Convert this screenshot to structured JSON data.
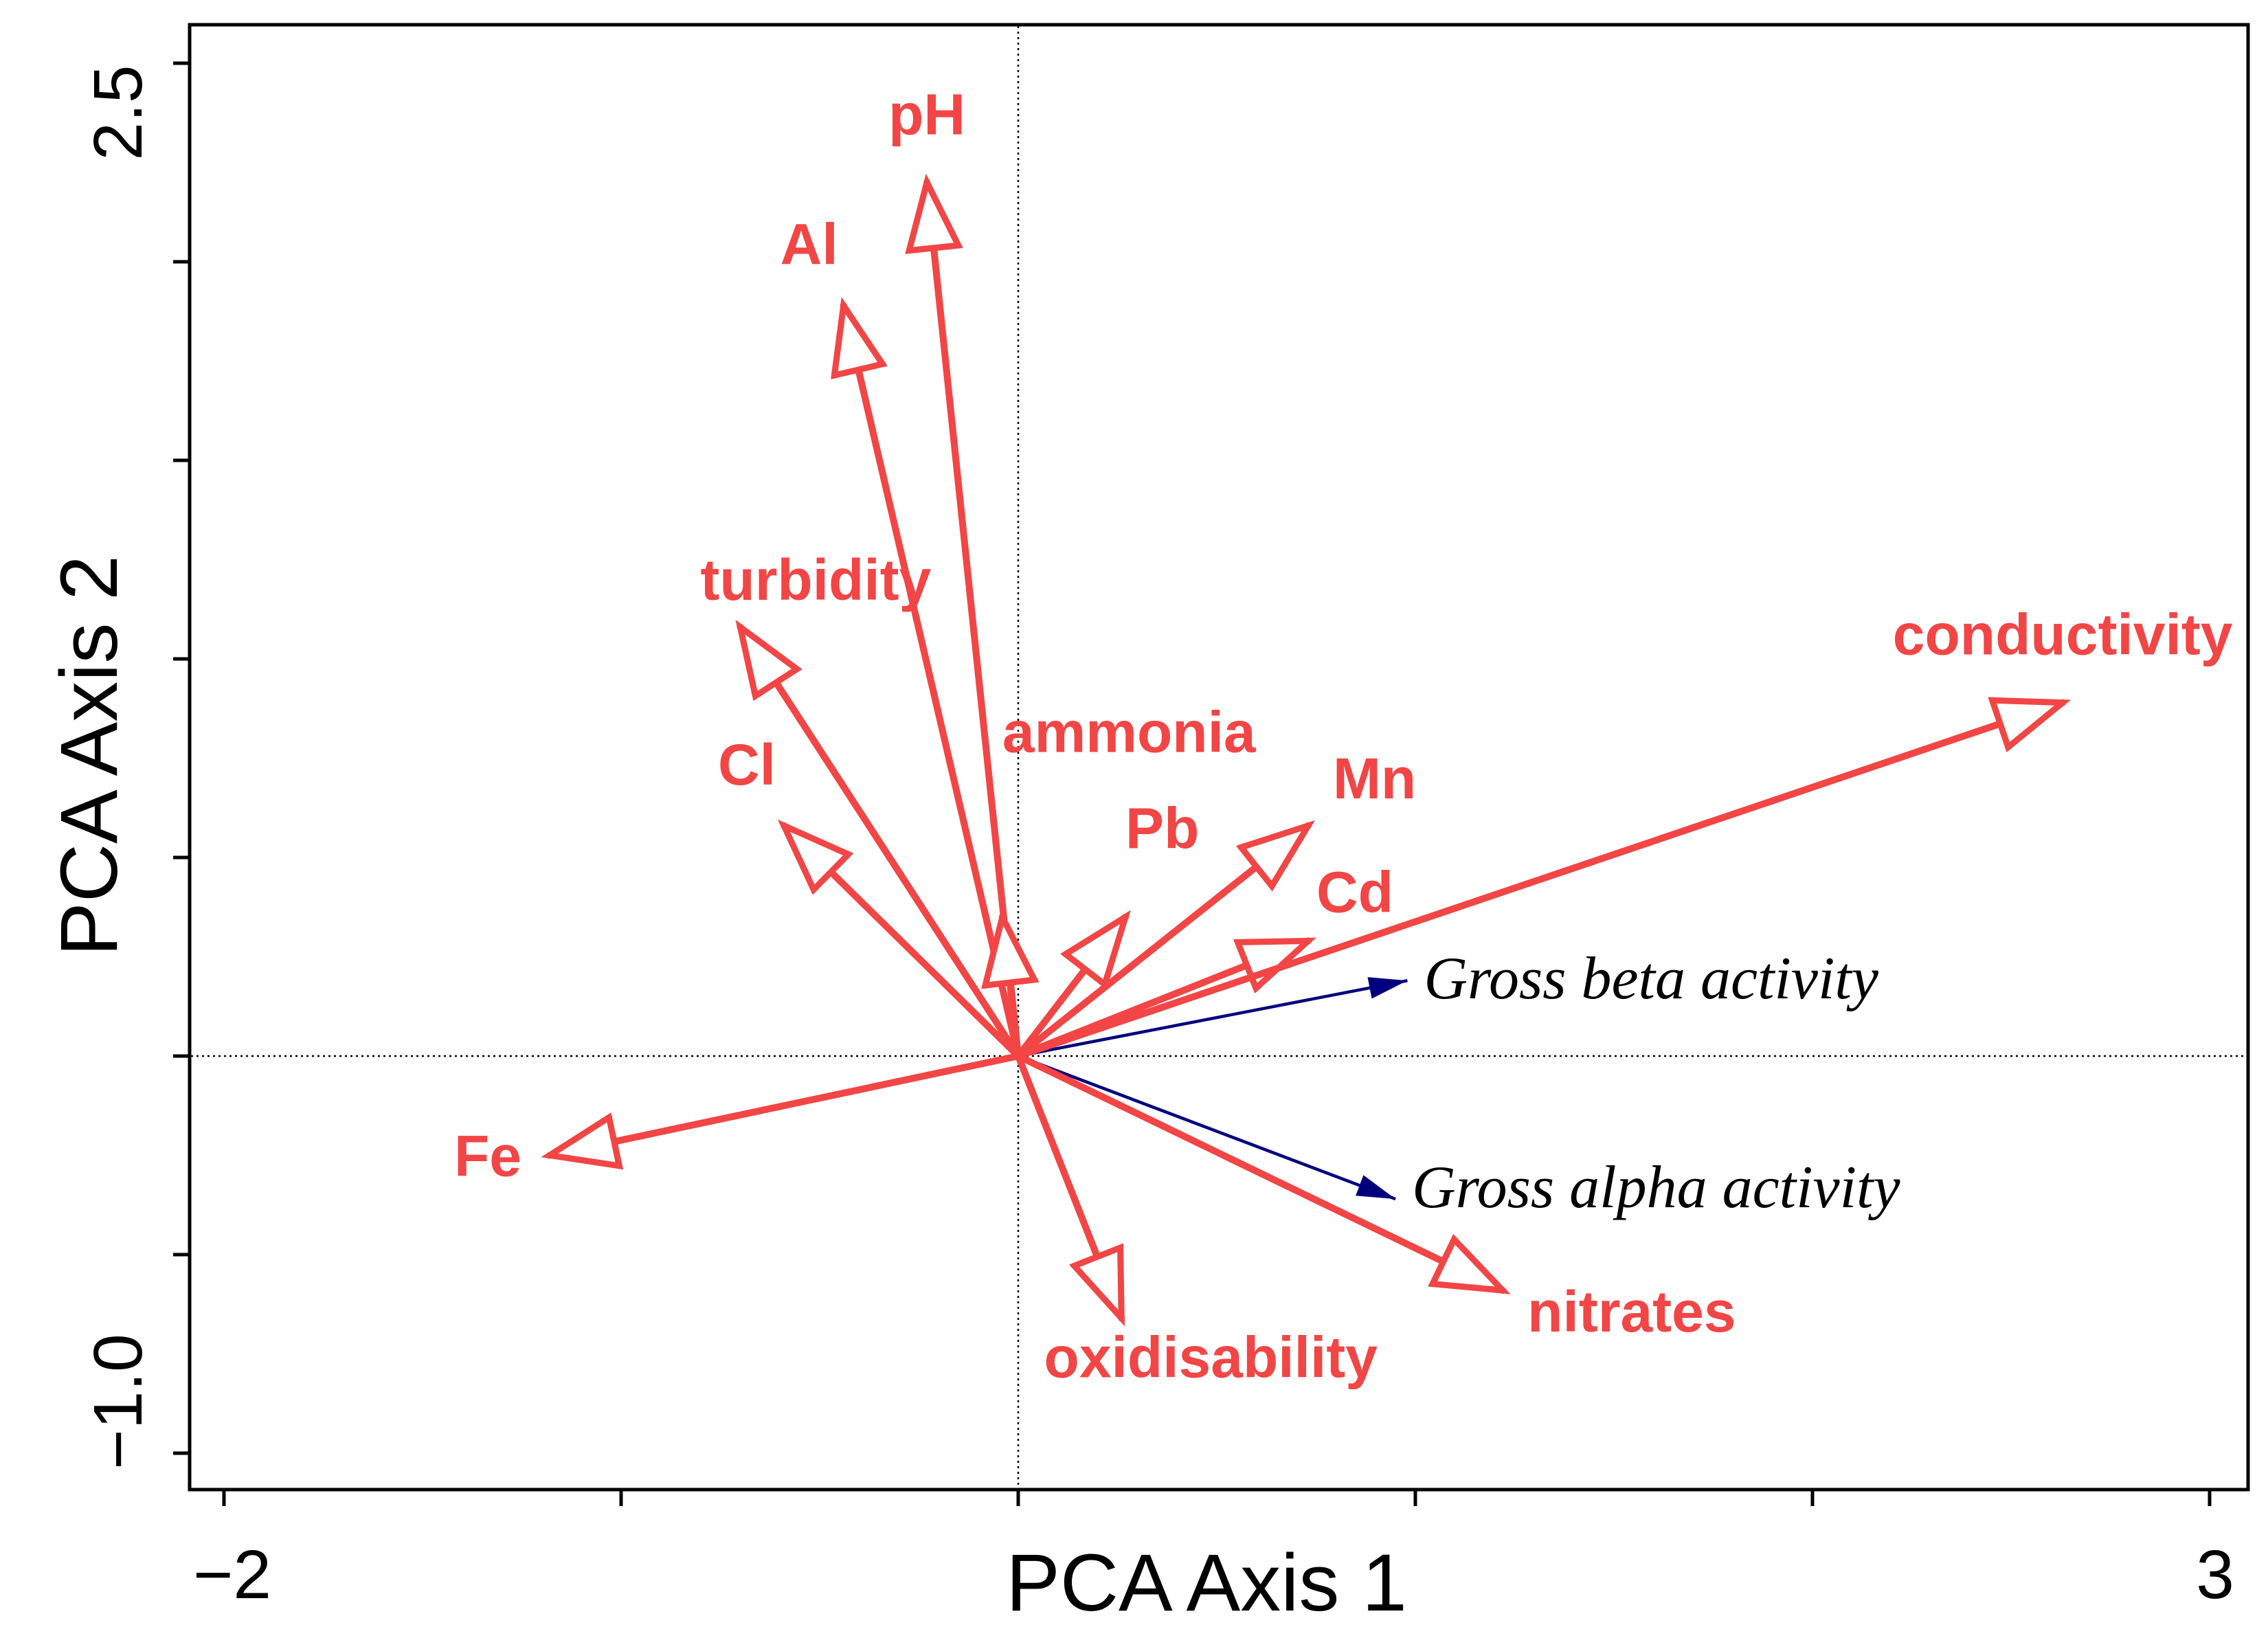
{
  "chart_data": {
    "type": "biplot",
    "xlabel": "PCA Axis 1",
    "ylabel": "PCA Axis 2",
    "xlim": [
      -2.05,
      3.05
    ],
    "ylim": [
      -1.1,
      2.6
    ],
    "x_tick_labels": [
      {
        "value": -2,
        "label": "−2"
      },
      {
        "value": 3,
        "label": "3"
      }
    ],
    "y_tick_labels": [
      {
        "value": -1.0,
        "label": "−1.0"
      },
      {
        "value": 2.5,
        "label": "2.5"
      }
    ],
    "x_ticks": [
      -2,
      -1,
      0,
      1,
      2,
      3
    ],
    "y_ticks": [
      -1.0,
      -0.5,
      0,
      0.5,
      1.0,
      1.5,
      2.0,
      2.5
    ],
    "env_color": "#f24545",
    "sup_color": "#00007f",
    "env_vectors": [
      {
        "name": "pH",
        "x": -0.23,
        "y": 2.2
      },
      {
        "name": "Al",
        "x": -0.44,
        "y": 1.89
      },
      {
        "name": "turbidity",
        "x": -0.7,
        "y": 1.08
      },
      {
        "name": "Cl",
        "x": -0.59,
        "y": 0.58
      },
      {
        "name": "ammonia",
        "x": -0.04,
        "y": 0.35
      },
      {
        "name": "Pb",
        "x": 0.27,
        "y": 0.35
      },
      {
        "name": "Mn",
        "x": 0.73,
        "y": 0.58
      },
      {
        "name": "Cd",
        "x": 0.73,
        "y": 0.29
      },
      {
        "name": "conductivity",
        "x": 2.63,
        "y": 0.89
      },
      {
        "name": "Fe",
        "x": -1.18,
        "y": -0.25
      },
      {
        "name": "oxidisability",
        "x": 0.26,
        "y": -0.66
      },
      {
        "name": "nitrates",
        "x": 1.22,
        "y": -0.59
      }
    ],
    "supplementary_vectors": [
      {
        "name": "Gross beta activity",
        "x": 0.98,
        "y": 0.19
      },
      {
        "name": "Gross alpha activity",
        "x": 0.95,
        "y": -0.36
      }
    ]
  }
}
